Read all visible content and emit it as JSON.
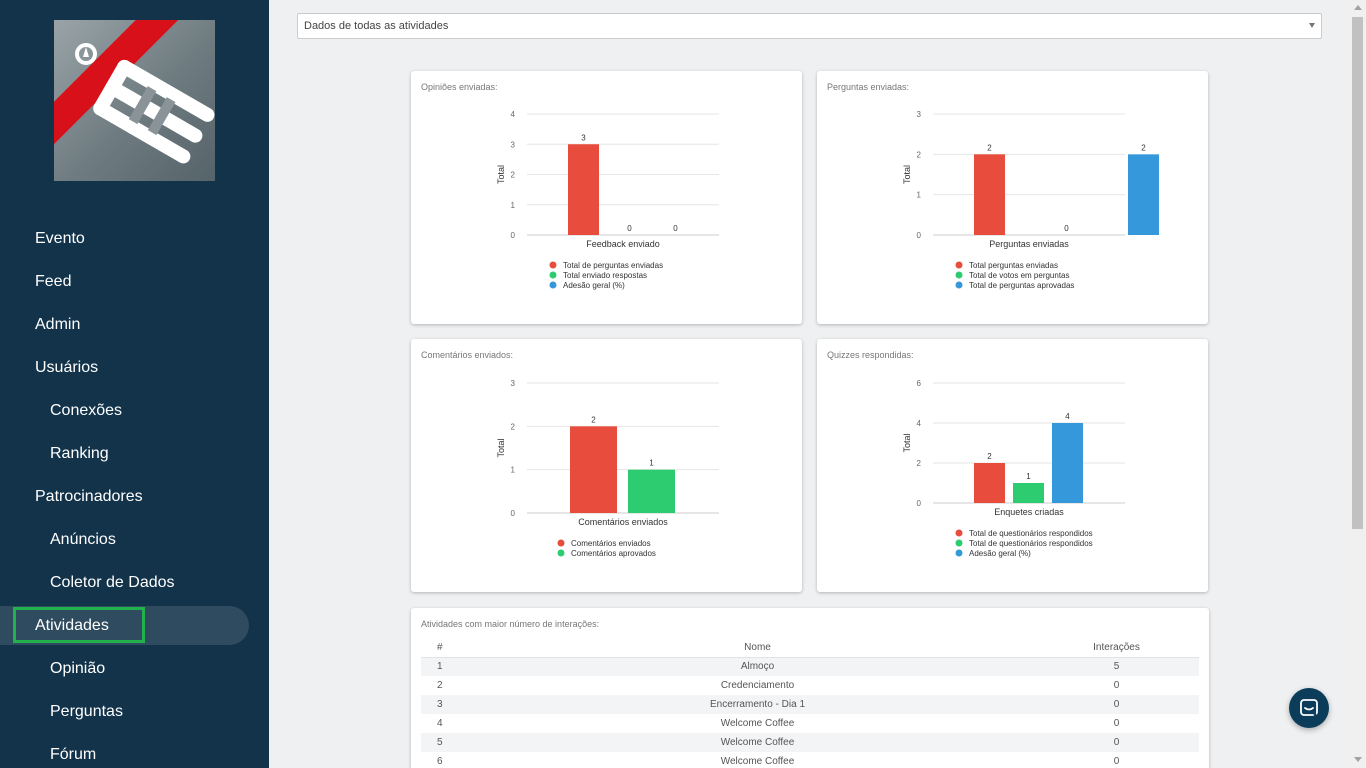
{
  "sidebar": {
    "items": [
      {
        "label": "Evento",
        "level": 1,
        "active": false
      },
      {
        "label": "Feed",
        "level": 1,
        "active": false
      },
      {
        "label": "Admin",
        "level": 1,
        "active": false
      },
      {
        "label": "Usuários",
        "level": 1,
        "active": false
      },
      {
        "label": "Conexões",
        "level": 2,
        "active": false
      },
      {
        "label": "Ranking",
        "level": 2,
        "active": false
      },
      {
        "label": "Patrocinadores",
        "level": 1,
        "active": false
      },
      {
        "label": "Anúncios",
        "level": 2,
        "active": false
      },
      {
        "label": "Coletor de Dados",
        "level": 2,
        "active": false
      },
      {
        "label": "Atividades",
        "level": 1,
        "active": true
      },
      {
        "label": "Opinião",
        "level": 2,
        "active": false
      },
      {
        "label": "Perguntas",
        "level": 2,
        "active": false
      },
      {
        "label": "Fórum",
        "level": 2,
        "active": false
      }
    ]
  },
  "filter": {
    "selected": "Dados de todas as atividades"
  },
  "colors": {
    "red": "#e74c3c",
    "green": "#2ecc71",
    "blue": "#3498db",
    "grid": "#e6e6e6"
  },
  "chart_data": [
    {
      "card_title": "Opiniões enviadas:",
      "type": "bar",
      "ylabel": "Total",
      "xlabel": "Feedback enviado",
      "ylim": [
        0,
        4
      ],
      "yticks": [
        0,
        1,
        2,
        3,
        4
      ],
      "series": [
        {
          "name": "Total de perguntas enviadas",
          "value": 3,
          "color": "#e74c3c"
        },
        {
          "name": "Total enviado respostas",
          "value": 0,
          "color": "#2ecc71"
        },
        {
          "name": "Adesão geral (%)",
          "value": 0,
          "color": "#3498db"
        }
      ]
    },
    {
      "card_title": "Perguntas enviadas:",
      "type": "bar",
      "ylabel": "Total",
      "xlabel": "Perguntas enviadas",
      "ylim": [
        0,
        3
      ],
      "yticks": [
        0,
        1,
        2,
        3
      ],
      "series": [
        {
          "name": "Total perguntas enviadas",
          "value": 2,
          "color": "#e74c3c"
        },
        {
          "name": "Total de votos em perguntas",
          "value": 0,
          "color": "#2ecc71"
        },
        {
          "name": "Total de perguntas aprovadas",
          "value": 2,
          "color": "#3498db"
        }
      ]
    },
    {
      "card_title": "Comentários enviados:",
      "type": "bar",
      "ylabel": "Total",
      "xlabel": "Comentários enviados",
      "ylim": [
        0,
        3
      ],
      "yticks": [
        0,
        1,
        2,
        3
      ],
      "series": [
        {
          "name": "Comentários enviados",
          "value": 2,
          "color": "#e74c3c"
        },
        {
          "name": "Comentários aprovados",
          "value": 1,
          "color": "#2ecc71"
        }
      ]
    },
    {
      "card_title": "Quizzes respondidas:",
      "type": "bar",
      "ylabel": "Total",
      "xlabel": "Enquetes criadas",
      "ylim": [
        0,
        6
      ],
      "yticks": [
        0,
        2,
        4,
        6
      ],
      "series": [
        {
          "name": "Total de questionários respondidos",
          "value": 2,
          "color": "#e74c3c"
        },
        {
          "name": "Total de questionários respondidos",
          "value": 1,
          "color": "#2ecc71"
        },
        {
          "name": "Adesão geral (%)",
          "value": 4,
          "color": "#3498db"
        }
      ]
    }
  ],
  "table": {
    "title": "Atividades com maior número de interações:",
    "headers": [
      "#",
      "Nome",
      "Interações"
    ],
    "rows": [
      [
        "1",
        "Almoço",
        "5"
      ],
      [
        "2",
        "Credenciamento",
        "0"
      ],
      [
        "3",
        "Encerramento - Dia 1",
        "0"
      ],
      [
        "4",
        "Welcome Coffee",
        "0"
      ],
      [
        "5",
        "Welcome Coffee",
        "0"
      ],
      [
        "6",
        "Welcome Coffee",
        "0"
      ]
    ]
  }
}
